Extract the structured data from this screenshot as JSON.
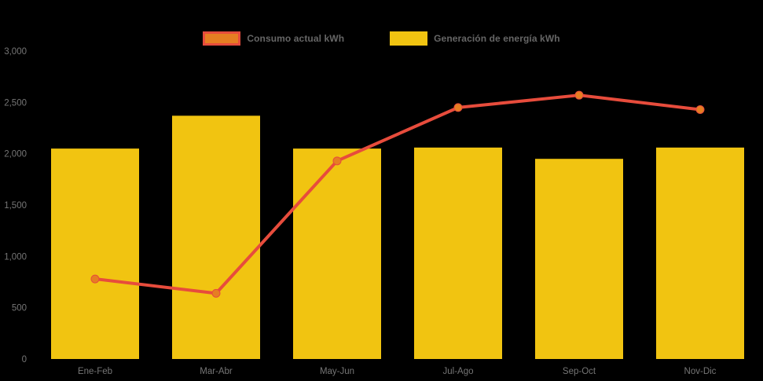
{
  "chart": {
    "background_color": "#000000",
    "text_color": "#757575",
    "legend_text_color": "#666666",
    "bar_color": "#F1C411",
    "line_color": "#E74C3C",
    "marker_color": "#E67E22"
  },
  "chart_data": {
    "type": "bar",
    "subtype": "bar-and-line-combo",
    "title": "",
    "xlabel": "",
    "ylabel": "",
    "categories": [
      "Ene-Feb",
      "Mar-Abr",
      "May-Jun",
      "Jul-Ago",
      "Sep-Oct",
      "Nov-Dic"
    ],
    "series": [
      {
        "name": "Consumo actual kWh",
        "type": "line",
        "color": "#E74C3C",
        "marker_color": "#E67E22",
        "values": [
          780,
          640,
          1930,
          2450,
          2570,
          2430
        ]
      },
      {
        "name": "Generación de energía kWh",
        "type": "bar",
        "color": "#F1C411",
        "values": [
          2050,
          2370,
          2050,
          2060,
          1950,
          2060
        ]
      }
    ],
    "ylim": [
      0,
      3000
    ],
    "yticks": [
      0,
      500,
      1000,
      1500,
      2000,
      2500,
      3000
    ],
    "ytick_labels": [
      "0",
      "500",
      "1,000",
      "1,500",
      "2,000",
      "2,500",
      "3,000"
    ],
    "grid": false,
    "legend_position": "top-center"
  }
}
